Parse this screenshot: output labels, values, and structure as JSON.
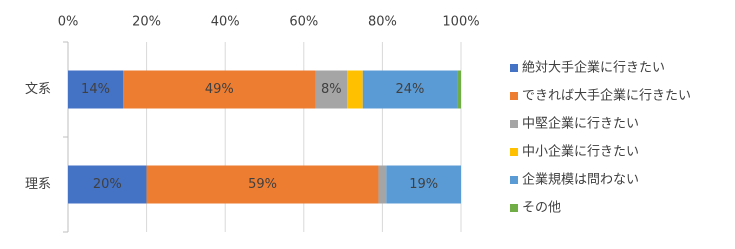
{
  "chart_data": {
    "type": "stacked-bar-horizontal",
    "categories": [
      "文系",
      "理系"
    ],
    "series": [
      {
        "name": "絶対大手企業に行きたい",
        "color": "#4472c4",
        "values": [
          14,
          20
        ],
        "value_labels": [
          "14%",
          "20%"
        ]
      },
      {
        "name": "できれば大手企業に行きたい",
        "color": "#ed7d31",
        "values": [
          49,
          59
        ],
        "value_labels": [
          "49%",
          "59%"
        ]
      },
      {
        "name": "中堅企業に行きたい",
        "color": "#a5a5a5",
        "values": [
          8,
          2
        ],
        "value_labels": [
          "8%",
          null
        ]
      },
      {
        "name": "中小企業に行きたい",
        "color": "#ffc000",
        "values": [
          4,
          0
        ],
        "value_labels": [
          null,
          null
        ]
      },
      {
        "name": "企業規模は問わない",
        "color": "#5b9bd5",
        "values": [
          24,
          19
        ],
        "value_labels": [
          "24%",
          "19%"
        ]
      },
      {
        "name": "その他",
        "color": "#70ad47",
        "values": [
          1,
          0
        ],
        "value_labels": [
          null,
          null
        ]
      }
    ],
    "xlim": [
      0,
      100
    ],
    "xticks": [
      {
        "value": 0,
        "label": "0%"
      },
      {
        "value": 20,
        "label": "20%"
      },
      {
        "value": 40,
        "label": "40%"
      },
      {
        "value": 60,
        "label": "60%"
      },
      {
        "value": 80,
        "label": "80%"
      },
      {
        "value": 100,
        "label": "100%"
      }
    ],
    "grid": true
  }
}
